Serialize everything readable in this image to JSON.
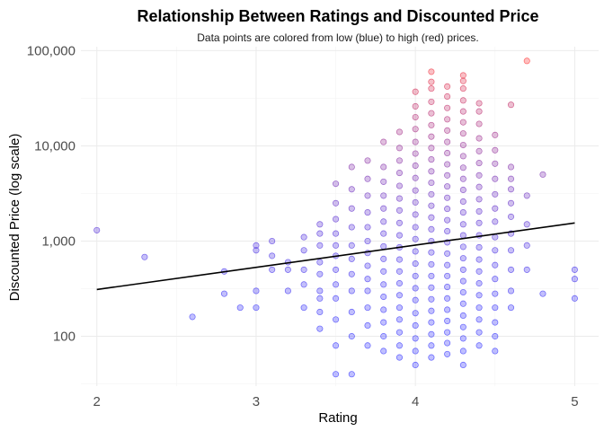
{
  "chart_data": {
    "type": "scatter",
    "title": "Relationship Between Ratings and Discounted Price",
    "subtitle": "Data points are colored from low (blue) to high (red) prices.",
    "xlabel": "Rating",
    "ylabel": "Discounted Price (log scale)",
    "x_scale": "linear",
    "y_scale": "log10",
    "xlim": [
      1.9,
      5.15
    ],
    "ylim": [
      30,
      110000
    ],
    "x_ticks": [
      2,
      3,
      4,
      5
    ],
    "x_tick_labels": [
      "2",
      "3",
      "4",
      "5"
    ],
    "y_ticks": [
      100,
      1000,
      10000,
      100000
    ],
    "y_tick_labels": [
      "100",
      "1,000",
      "10,000",
      "100,000"
    ],
    "grid": true,
    "legend": "none",
    "color_scale": {
      "low": "#0000ff",
      "high": "#ff0000"
    },
    "trend_line": {
      "x": [
        2.0,
        5.0
      ],
      "y": [
        310,
        1550
      ],
      "color": "#000000"
    },
    "columns": [
      {
        "x": 2.0,
        "y": [
          1300
        ]
      },
      {
        "x": 2.3,
        "y": [
          680
        ]
      },
      {
        "x": 2.6,
        "y": [
          160
        ]
      },
      {
        "x": 2.8,
        "y": [
          280,
          480
        ]
      },
      {
        "x": 2.9,
        "y": [
          200
        ]
      },
      {
        "x": 3.0,
        "y": [
          200,
          300,
          800,
          900
        ]
      },
      {
        "x": 3.1,
        "y": [
          500,
          700,
          1000
        ]
      },
      {
        "x": 3.2,
        "y": [
          300,
          500,
          600
        ]
      },
      {
        "x": 3.3,
        "y": [
          200,
          350,
          500,
          800,
          1100
        ]
      },
      {
        "x": 3.4,
        "y": [
          120,
          180,
          250,
          300,
          450,
          600,
          900,
          1200,
          1500
        ]
      },
      {
        "x": 3.5,
        "y": [
          40,
          80,
          150,
          250,
          350,
          500,
          700,
          900,
          1200,
          1700,
          2500,
          4000
        ]
      },
      {
        "x": 3.6,
        "y": [
          40,
          100,
          180,
          300,
          450,
          650,
          900,
          1400,
          2200,
          3500,
          6000
        ]
      },
      {
        "x": 3.7,
        "y": [
          80,
          130,
          200,
          300,
          400,
          550,
          750,
          1000,
          1400,
          2000,
          3000,
          4500,
          7000
        ]
      },
      {
        "x": 3.8,
        "y": [
          70,
          100,
          140,
          190,
          260,
          350,
          480,
          650,
          880,
          1200,
          1600,
          2200,
          3000,
          4200,
          6000,
          11000
        ]
      },
      {
        "x": 3.9,
        "y": [
          60,
          80,
          110,
          150,
          200,
          270,
          360,
          480,
          640,
          860,
          1150,
          1550,
          2100,
          2800,
          3800,
          5200,
          7000,
          9500,
          14000
        ]
      },
      {
        "x": 4.0,
        "y": [
          50,
          70,
          95,
          130,
          175,
          240,
          320,
          430,
          580,
          780,
          1050,
          1400,
          1900,
          2550,
          3400,
          4600,
          6200,
          8300,
          11000,
          15000,
          20000,
          26000,
          37000
        ]
      },
      {
        "x": 4.1,
        "y": [
          60,
          80,
          105,
          140,
          185,
          245,
          325,
          430,
          570,
          760,
          1000,
          1330,
          1770,
          2350,
          3100,
          4100,
          5400,
          7200,
          9500,
          12500,
          16500,
          22000,
          29000,
          40000,
          47000,
          60000
        ]
      },
      {
        "x": 4.2,
        "y": [
          65,
          85,
          110,
          145,
          190,
          250,
          330,
          430,
          560,
          740,
          970,
          1270,
          1660,
          2180,
          2850,
          3750,
          4900,
          6400,
          8400,
          11000,
          14500,
          19000,
          25000,
          33000,
          42000
        ]
      },
      {
        "x": 4.3,
        "y": [
          50,
          70,
          95,
          125,
          165,
          220,
          290,
          380,
          500,
          660,
          870,
          1150,
          1500,
          2000,
          2600,
          3450,
          4500,
          5900,
          7800,
          10200,
          13500,
          17700,
          23000,
          30000,
          40000,
          48000,
          55000
        ]
      },
      {
        "x": 4.4,
        "y": [
          80,
          110,
          150,
          200,
          270,
          360,
          480,
          640,
          860,
          1150,
          1550,
          2050,
          2750,
          3700,
          4900,
          6600,
          8800,
          12000,
          17000,
          23000,
          28000
        ]
      },
      {
        "x": 4.5,
        "y": [
          70,
          100,
          140,
          200,
          280,
          400,
          560,
          800,
          1100,
          1600,
          2200,
          3100,
          4500,
          6500,
          9000,
          13000
        ]
      },
      {
        "x": 4.6,
        "y": [
          200,
          300,
          500,
          800,
          1200,
          1800,
          2500,
          3500,
          4500,
          6000,
          27000
        ]
      },
      {
        "x": 4.7,
        "y": [
          500,
          900,
          1500,
          3000,
          78000
        ]
      },
      {
        "x": 4.8,
        "y": [
          280,
          5000
        ]
      },
      {
        "x": 5.0,
        "y": [
          250,
          400,
          500
        ]
      }
    ]
  }
}
